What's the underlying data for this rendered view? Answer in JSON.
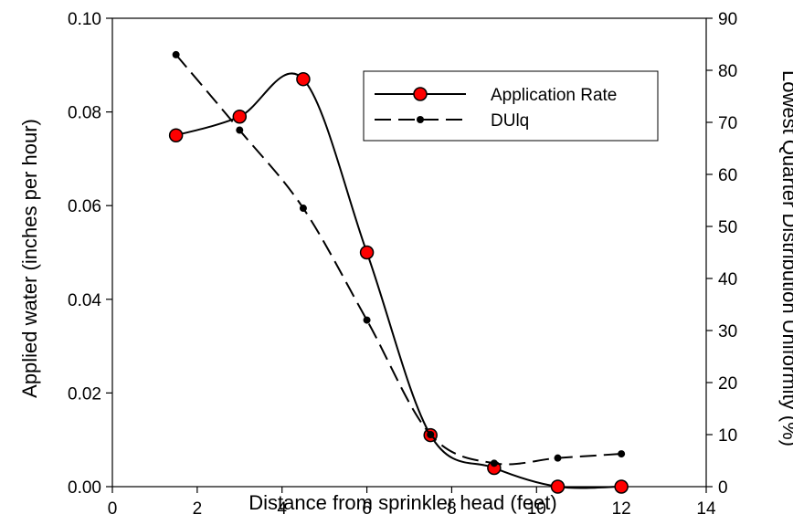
{
  "chart_data": {
    "type": "line",
    "title": "",
    "xlabel": "Distance from sprinkler head (feet)",
    "ylabel": "Applied water (inches per hour)",
    "y2label": "Lowest Quarter Distribution Uniformity (%)",
    "xlim": [
      0,
      14
    ],
    "ylim": [
      0,
      0.1
    ],
    "y2lim": [
      0,
      90
    ],
    "x_ticks": [
      "0",
      "2",
      "4",
      "6",
      "8",
      "10",
      "12",
      "14"
    ],
    "y_ticks": [
      "0.00",
      "0.02",
      "0.04",
      "0.06",
      "0.08",
      "0.10"
    ],
    "y2_ticks": [
      "0",
      "10",
      "20",
      "30",
      "40",
      "50",
      "60",
      "70",
      "80",
      "90"
    ],
    "grid": false,
    "legend_position": "top-right",
    "series": [
      {
        "name": "Application Rate",
        "axis": "left",
        "line_style": "solid",
        "marker": "circle",
        "marker_color": "#ff0000",
        "x": [
          1.5,
          3,
          4.5,
          6,
          7.5,
          9,
          10.5,
          12
        ],
        "values": [
          0.075,
          0.079,
          0.087,
          0.05,
          0.011,
          0.004,
          0.0,
          0.0
        ]
      },
      {
        "name": "DUlq",
        "axis": "right",
        "line_style": "dashed",
        "marker": "dot",
        "marker_color": "#000000",
        "x": [
          1.5,
          3,
          4.5,
          6,
          7.5,
          9,
          10.5,
          12
        ],
        "values": [
          83,
          68.5,
          53.5,
          32,
          10,
          4.5,
          5.5,
          6.3
        ]
      }
    ]
  }
}
